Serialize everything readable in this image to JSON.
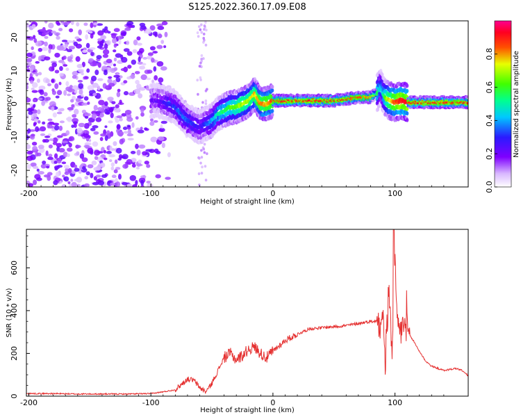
{
  "title": "S125.2022.360.17.09.E08",
  "colors": {
    "snr_line": "#e53030",
    "axis": "#000000",
    "background": "#ffffff"
  },
  "chart_data": [
    {
      "type": "heatmap",
      "panel": "spectrogram",
      "xlabel": "Height of straight line (km)",
      "ylabel": "Frequency (Hz)",
      "xlim": [
        -202,
        160
      ],
      "ylim": [
        -25,
        25
      ],
      "xticks": [
        -200,
        -100,
        0,
        100
      ],
      "xtick_labels": [
        "-200",
        "-100",
        "0",
        "100"
      ],
      "yticks": [
        -20,
        -10,
        0,
        10,
        20
      ],
      "ytick_labels": [
        "-20",
        "-10",
        "0",
        "10",
        "20"
      ],
      "colorbar": {
        "label": "Normalized spectral amplitude",
        "range": [
          0,
          1
        ],
        "ticks": [
          0.0,
          0.2,
          0.4,
          0.6,
          0.8
        ],
        "tick_labels": [
          "0.0",
          "0.2",
          "0.4",
          "0.6",
          "0.8"
        ],
        "colormap": "rainbow (white, violet, blue, cyan, green, yellow, red, magenta)"
      },
      "ridge": {
        "x": [
          -100,
          -95,
          -90,
          -85,
          -80,
          -75,
          -70,
          -65,
          -60,
          -55,
          -50,
          -45,
          -40,
          -35,
          -30,
          -25,
          -20,
          -15,
          -10,
          -5,
          0,
          10,
          20,
          30,
          40,
          50,
          60,
          70,
          80,
          85,
          88,
          90,
          92,
          95,
          100,
          105,
          110,
          120,
          130,
          140,
          150,
          160
        ],
        "freq": [
          1,
          1,
          0.5,
          0,
          -1,
          -3,
          -5,
          -6,
          -7,
          -6,
          -5,
          -3,
          -2,
          -1,
          -1,
          0,
          1,
          3,
          0,
          0,
          1,
          1,
          1,
          1,
          1,
          1,
          1.5,
          2,
          2,
          3,
          5,
          3,
          2,
          1,
          0.5,
          1,
          0.5,
          0.5,
          0.5,
          0.5,
          0.5,
          0.5
        ],
        "amplitude": [
          0.2,
          0.2,
          0.25,
          0.3,
          0.3,
          0.35,
          0.35,
          0.3,
          0.25,
          0.3,
          0.4,
          0.5,
          0.55,
          0.6,
          0.65,
          0.7,
          0.7,
          0.75,
          0.8,
          0.8,
          0.85,
          0.9,
          0.9,
          0.9,
          0.9,
          0.9,
          0.88,
          0.85,
          0.8,
          0.6,
          0.4,
          0.5,
          0.6,
          0.75,
          0.85,
          0.9,
          0.9,
          0.9,
          0.9,
          0.9,
          0.9,
          0.9
        ]
      },
      "noise_region_x": [
        -202,
        -95
      ],
      "notes_visible": []
    },
    {
      "type": "line",
      "panel": "snr",
      "xlabel": "Height of straight line (km)",
      "ylabel": "SNR (10 * v/v)",
      "xlim": [
        -202,
        160
      ],
      "ylim": [
        0,
        780
      ],
      "xticks": [
        -200,
        -100,
        0,
        100
      ],
      "xtick_labels": [
        "-200",
        "-100",
        "0",
        "100"
      ],
      "yticks": [
        0,
        200,
        400,
        600
      ],
      "ytick_labels": [
        "0",
        "200",
        "400",
        "600"
      ],
      "series": [
        {
          "x": [
            -200,
            -180,
            -160,
            -140,
            -120,
            -100,
            -90,
            -80,
            -75,
            -70,
            -65,
            -60,
            -55,
            -50,
            -45,
            -40,
            -35,
            -30,
            -25,
            -20,
            -15,
            -10,
            -5,
            0,
            10,
            20,
            30,
            40,
            50,
            60,
            70,
            80,
            85,
            88,
            90,
            92,
            95,
            98,
            100,
            103,
            106,
            110,
            115,
            120,
            125,
            130,
            140,
            150,
            155,
            160
          ],
          "y": [
            12,
            12,
            10,
            10,
            10,
            12,
            20,
            30,
            55,
            80,
            75,
            40,
            20,
            60,
            120,
            180,
            200,
            170,
            190,
            220,
            230,
            200,
            180,
            210,
            260,
            290,
            315,
            320,
            325,
            330,
            340,
            350,
            350,
            360,
            400,
            150,
            500,
            200,
            600,
            260,
            340,
            300,
            260,
            210,
            165,
            140,
            120,
            130,
            120,
            95
          ]
        }
      ],
      "peak": {
        "x": 99,
        "y": 780
      }
    }
  ]
}
